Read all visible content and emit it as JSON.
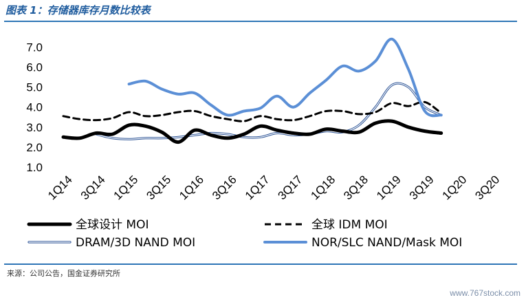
{
  "header": {
    "title": "图表 1：存储器库存月数比较表"
  },
  "footer": {
    "source": "来源：公司公告，国金证券研究所",
    "watermark": "www.767stock.com"
  },
  "chart_data": {
    "type": "line",
    "title": "图表 1：存储器库存月数比较表",
    "xlabel": "",
    "ylabel": "",
    "ylim": [
      1.0,
      7.0
    ],
    "yticks": [
      "1.0",
      "2.0",
      "3.0",
      "4.0",
      "5.0",
      "6.0",
      "7.0"
    ],
    "x_tick_labels": [
      "1Q14",
      "3Q14",
      "1Q15",
      "3Q15",
      "1Q16",
      "3Q16",
      "1Q17",
      "3Q17",
      "1Q18",
      "3Q18",
      "1Q19",
      "3Q19",
      "1Q20",
      "3Q20"
    ],
    "categories": [
      "1Q14",
      "2Q14",
      "3Q14",
      "4Q14",
      "1Q15",
      "2Q15",
      "3Q15",
      "4Q15",
      "1Q16",
      "2Q16",
      "3Q16",
      "4Q16",
      "1Q17",
      "2Q17",
      "3Q17",
      "4Q17",
      "1Q18",
      "2Q18",
      "3Q18",
      "4Q18",
      "1Q19",
      "2Q19",
      "3Q19",
      "4Q19",
      "1Q20",
      "2Q20",
      "3Q20"
    ],
    "grid": false,
    "legend_position": "bottom",
    "series": [
      {
        "name": "全球设计 MOI",
        "color": "#000000",
        "style": "solid-thick",
        "values": [
          2.5,
          2.45,
          2.7,
          2.65,
          3.1,
          3.05,
          2.75,
          2.25,
          2.85,
          2.6,
          2.45,
          2.65,
          3.05,
          2.85,
          2.7,
          2.65,
          2.9,
          2.8,
          2.75,
          3.2,
          3.3,
          3.0,
          2.8,
          2.7,
          null,
          null,
          null
        ]
      },
      {
        "name": "全球 IDM MOI",
        "color": "#000000",
        "style": "dashed",
        "values": [
          3.55,
          3.4,
          3.35,
          3.45,
          3.75,
          3.55,
          3.6,
          3.75,
          3.8,
          3.55,
          3.4,
          3.3,
          3.55,
          3.4,
          3.35,
          3.55,
          3.8,
          3.8,
          3.65,
          3.75,
          4.2,
          4.05,
          4.25,
          3.7,
          null,
          null,
          null
        ]
      },
      {
        "name": "DRAM/3D NAND MOI",
        "color": "#2e5597",
        "style": "double",
        "values": [
          null,
          null,
          2.65,
          2.45,
          2.4,
          2.45,
          2.45,
          2.5,
          2.6,
          2.7,
          2.65,
          2.5,
          2.5,
          2.7,
          2.6,
          2.65,
          2.8,
          2.75,
          3.1,
          4.0,
          5.1,
          5.0,
          4.0,
          3.6,
          null,
          null,
          null
        ]
      },
      {
        "name": "NOR/SLC NAND/Mask MOI",
        "color": "#5b8fd6",
        "style": "solid",
        "values": [
          null,
          null,
          null,
          null,
          5.15,
          5.3,
          4.9,
          4.65,
          4.7,
          4.1,
          3.6,
          3.8,
          3.95,
          4.55,
          4.0,
          4.7,
          5.35,
          6.05,
          5.8,
          6.3,
          7.4,
          5.9,
          3.8,
          3.6,
          null,
          null,
          null
        ]
      }
    ]
  }
}
